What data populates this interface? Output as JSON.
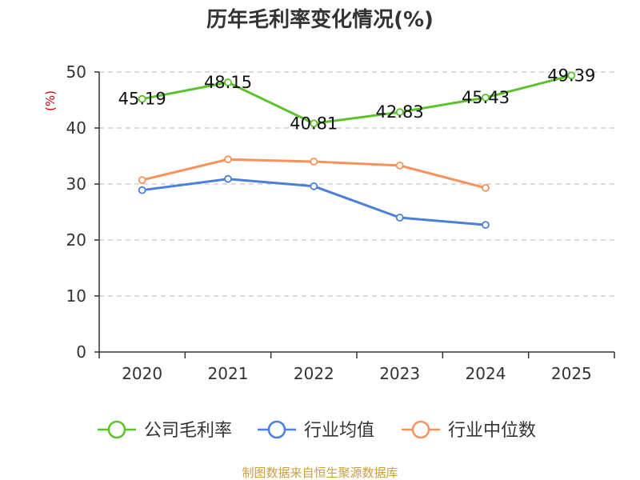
{
  "chart_data": {
    "type": "line",
    "title": "历年毛利率变化情况(%)",
    "ylabel": "(%)",
    "xlabel": "",
    "categories": [
      "2020",
      "2021",
      "2022",
      "2023",
      "2024",
      "2025"
    ],
    "ylim": [
      0,
      50
    ],
    "yticks": [
      0,
      10,
      20,
      30,
      40,
      50
    ],
    "ytick_labels": [
      "0",
      "10",
      "20",
      "30",
      "40",
      "50"
    ],
    "grid": true,
    "legend_position": "bottom",
    "series": [
      {
        "name": "公司毛利率",
        "color": "#5cc22b",
        "values": [
          45.19,
          48.15,
          40.81,
          42.83,
          45.43,
          49.39
        ],
        "labels": [
          "45.19",
          "48.15",
          "40.81",
          "42.83",
          "45.43",
          "49.39"
        ]
      },
      {
        "name": "行业均值",
        "color": "#4a7fdc",
        "values": [
          28.9,
          30.9,
          29.6,
          24.0,
          22.7,
          null
        ]
      },
      {
        "name": "行业中位数",
        "color": "#f7925a",
        "values": [
          30.7,
          34.4,
          34.0,
          33.3,
          29.3,
          null
        ]
      }
    ]
  },
  "source": "制图数据来自恒生聚源数据库",
  "colors": {
    "axis": "#333333",
    "grid": "#c8c8c8",
    "ylabel": "#d40000",
    "source": "#c8a040"
  }
}
